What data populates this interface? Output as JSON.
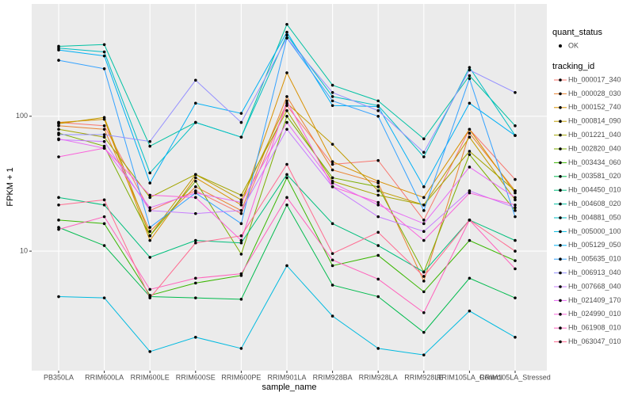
{
  "chart_data": {
    "type": "line",
    "x_label": "sample_name",
    "y_label": "FPKM + 1",
    "log_y": true,
    "grid": true,
    "categories": [
      "PB350LA",
      "RRIM600LA",
      "RRIM600LE",
      "RRIM600SE",
      "RRIM600PE",
      "RRIM901LA",
      "RRIM928BA",
      "RRIM928LA",
      "RRIM928LE",
      "RRIM105LA_Control",
      "RRIM105LA_Stressed"
    ],
    "ylim": [
      1.3,
      680
    ],
    "yticks": [
      10,
      100
    ],
    "point_legend": {
      "title": "quant_status",
      "label": "OK"
    },
    "legend_title": "tracking_id",
    "series": [
      {
        "name": "Hb_000017_340",
        "color": "#F8766D",
        "values": [
          90,
          85,
          20,
          28,
          19,
          120,
          44,
          47,
          17,
          80,
          34
        ]
      },
      {
        "name": "Hb_000028_030",
        "color": "#EA8331",
        "values": [
          85,
          80,
          14,
          30,
          20,
          140,
          40,
          32,
          6,
          75,
          28
        ]
      },
      {
        "name": "Hb_000152_740",
        "color": "#D89000",
        "values": [
          90,
          95,
          12,
          35,
          22,
          210,
          46,
          33,
          25,
          80,
          27
        ]
      },
      {
        "name": "Hb_000814_090",
        "color": "#C09B00",
        "values": [
          88,
          98,
          13,
          37,
          24,
          125,
          62,
          28,
          22,
          70,
          24
        ]
      },
      {
        "name": "Hb_001221_040",
        "color": "#A3A500",
        "values": [
          80,
          70,
          25,
          37,
          26,
          110,
          33,
          26,
          22,
          55,
          28
        ]
      },
      {
        "name": "Hb_002820_040",
        "color": "#7CAE00",
        "values": [
          75,
          60,
          13,
          33,
          9.5,
          100,
          35,
          30,
          7,
          52,
          20
        ]
      },
      {
        "name": "Hb_003434_060",
        "color": "#39B600",
        "values": [
          17,
          16,
          4.7,
          5.8,
          6.6,
          35,
          7.8,
          9.3,
          5,
          12,
          8.5
        ]
      },
      {
        "name": "Hb_003581_020",
        "color": "#00BB4E",
        "values": [
          15,
          11,
          4.6,
          4.5,
          4.4,
          22,
          5.6,
          4.6,
          2.5,
          6.3,
          4.5
        ]
      },
      {
        "name": "Hb_004450_010",
        "color": "#00BF7D",
        "values": [
          25,
          22,
          9,
          12,
          11.5,
          37,
          16,
          11,
          7,
          17,
          12
        ]
      },
      {
        "name": "Hb_004608_020",
        "color": "#00C1A3",
        "values": [
          330,
          340,
          60,
          90,
          70,
          480,
          170,
          130,
          68,
          200,
          85
        ]
      },
      {
        "name": "Hb_004881_050",
        "color": "#00BFC4",
        "values": [
          320,
          300,
          38,
          90,
          70,
          400,
          140,
          120,
          50,
          230,
          72
        ]
      },
      {
        "name": "Hb_005000_100",
        "color": "#00BAE0",
        "values": [
          4.6,
          4.5,
          1.8,
          2.3,
          1.9,
          7.8,
          3.3,
          1.9,
          1.7,
          3.6,
          2.3
        ]
      },
      {
        "name": "Hb_005129_050",
        "color": "#00B0F6",
        "values": [
          310,
          280,
          32,
          125,
          105,
          420,
          120,
          118,
          30,
          125,
          72
        ]
      },
      {
        "name": "Hb_005635_010",
        "color": "#35A2FF",
        "values": [
          260,
          225,
          15,
          27,
          16,
          380,
          130,
          100,
          20,
          190,
          18
        ]
      },
      {
        "name": "Hb_006913_040",
        "color": "#9590FF",
        "values": [
          73,
          73,
          65,
          185,
          90,
          380,
          150,
          110,
          54,
          220,
          150
        ]
      },
      {
        "name": "Hb_007668_040",
        "color": "#C77CFF",
        "values": [
          67,
          65,
          20,
          19,
          20,
          80,
          30,
          18,
          14,
          28,
          21
        ]
      },
      {
        "name": "Hb_021409_170",
        "color": "#E76BF3",
        "values": [
          68,
          58,
          21,
          27,
          23,
          90,
          32,
          22,
          16,
          42,
          25
        ]
      },
      {
        "name": "Hb_024990_010",
        "color": "#FA62DB",
        "values": [
          50,
          58,
          26,
          25,
          12,
          130,
          30,
          23,
          12,
          27,
          22
        ]
      },
      {
        "name": "Hb_061908_010",
        "color": "#FF62BC",
        "values": [
          14.5,
          18,
          5.2,
          6.3,
          6.8,
          25,
          8.6,
          6.2,
          3.5,
          17,
          7.4
        ]
      },
      {
        "name": "Hb_063047_010",
        "color": "#FF6C91",
        "values": [
          22,
          24,
          4.5,
          11.5,
          13,
          44,
          9.6,
          13.8,
          6.5,
          17,
          10
        ]
      }
    ]
  }
}
